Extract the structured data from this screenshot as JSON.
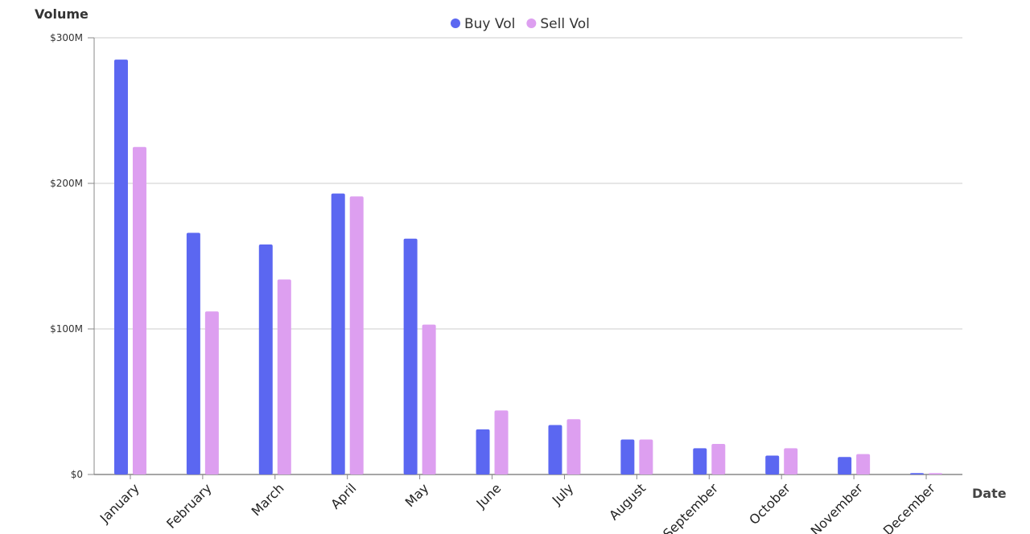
{
  "chart_data": {
    "type": "bar",
    "ylabel": "Volume",
    "xlabel": "Date",
    "ylim": [
      0,
      300
    ],
    "yticks": [
      "$0",
      "$100M",
      "$200M",
      "$300M"
    ],
    "ytick_values": [
      0,
      100,
      200,
      300
    ],
    "grid": true,
    "legend_position": "top-center",
    "categories": [
      "January",
      "February",
      "March",
      "April",
      "May",
      "June",
      "July",
      "August",
      "September",
      "October",
      "November",
      "December"
    ],
    "series": [
      {
        "name": "Buy Vol",
        "color": "#5b67f1",
        "values": [
          285,
          166,
          158,
          193,
          162,
          31,
          34,
          24,
          18,
          13,
          12,
          1
        ]
      },
      {
        "name": "Sell Vol",
        "color": "#dd9ff0",
        "values": [
          225,
          112,
          134,
          191,
          103,
          44,
          38,
          24,
          21,
          18,
          14,
          1
        ]
      }
    ]
  }
}
